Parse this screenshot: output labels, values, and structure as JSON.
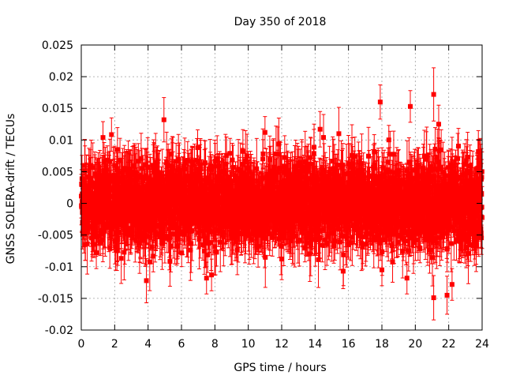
{
  "chart_data": {
    "type": "scatter",
    "title": "Day 350 of 2018",
    "xlabel": "GPS time / hours",
    "ylabel": "GNSS SOLERA-drift / TECUs",
    "xlim": [
      0,
      24
    ],
    "ylim": [
      -0.02,
      0.025
    ],
    "xticks": [
      0,
      2,
      4,
      6,
      8,
      10,
      12,
      14,
      16,
      18,
      20,
      22,
      24
    ],
    "yticks": [
      -0.02,
      -0.015,
      -0.01,
      -0.005,
      0,
      0.005,
      0.01,
      0.015,
      0.02,
      0.025
    ],
    "xtick_labels": [
      "0",
      "2",
      "4",
      "6",
      "8",
      "10",
      "12",
      "14",
      "16",
      "18",
      "20",
      "22",
      "24"
    ],
    "ytick_labels": [
      "-0.02",
      "-0.015",
      "-0.01",
      "-0.005",
      "0",
      "0.005",
      "0.01",
      "0.015",
      "0.02",
      "0.025"
    ],
    "grid": true,
    "series": [
      {
        "name": "SOLERA drift",
        "color": "#ff0000",
        "marker": "square",
        "error_bars": true,
        "typical_error": 0.0035,
        "noise_std": 0.0035,
        "n_points": 2880,
        "x_range": [
          0,
          24
        ],
        "notable_points": [
          {
            "x": 17.9,
            "y": 0.016,
            "err": 0.0027
          },
          {
            "x": 21.1,
            "y": 0.0172,
            "err": 0.0042
          },
          {
            "x": 19.7,
            "y": 0.0153,
            "err": 0.0025
          },
          {
            "x": 4.95,
            "y": 0.0132,
            "err": 0.0035
          },
          {
            "x": 21.4,
            "y": 0.0125,
            "err": 0.003
          },
          {
            "x": 14.3,
            "y": 0.0117,
            "err": 0.0028
          },
          {
            "x": 1.3,
            "y": 0.0104,
            "err": 0.0025
          },
          {
            "x": 11.0,
            "y": 0.0112,
            "err": 0.0025
          },
          {
            "x": 3.9,
            "y": -0.0122,
            "err": 0.0035
          },
          {
            "x": 21.1,
            "y": -0.0149,
            "err": 0.0035
          },
          {
            "x": 21.9,
            "y": -0.0145,
            "err": 0.003
          },
          {
            "x": 7.5,
            "y": -0.0118,
            "err": 0.0025
          },
          {
            "x": 7.8,
            "y": -0.0113,
            "err": 0.0025
          },
          {
            "x": 18.0,
            "y": -0.0105,
            "err": 0.0025
          },
          {
            "x": 19.5,
            "y": -0.0118,
            "err": 0.0025
          },
          {
            "x": 22.2,
            "y": -0.0128,
            "err": 0.0025
          },
          {
            "x": 0.25,
            "y": -0.0065,
            "err": 0.0025
          },
          {
            "x": 0.9,
            "y": -0.0078,
            "err": 0.0025
          }
        ]
      }
    ]
  }
}
